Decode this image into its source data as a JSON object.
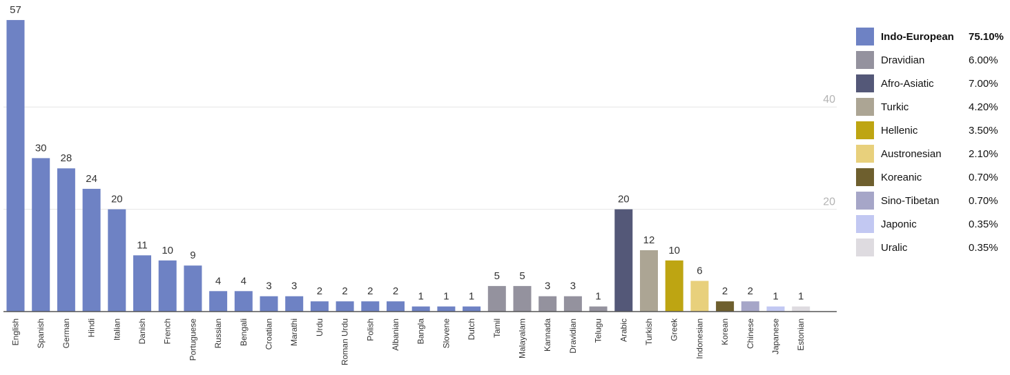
{
  "chart_data": {
    "type": "bar",
    "categories": [
      "English",
      "Spanish",
      "German",
      "Hindi",
      "Italian",
      "Danish",
      "French",
      "Portuguese",
      "Russian",
      "Bengali",
      "Croatian",
      "Marathi",
      "Urdu",
      "Roman Urdu",
      "Polish",
      "Albanian",
      "Bangla",
      "Slovene",
      "Dutch",
      "Tamil",
      "Malayalam",
      "Kannada",
      "Dravidian",
      "Telugu",
      "Arabic",
      "Turkish",
      "Greek",
      "Indonesian",
      "Korean",
      "Chinese",
      "Japanese",
      "Estonian"
    ],
    "values": [
      57,
      30,
      28,
      24,
      20,
      11,
      10,
      9,
      4,
      4,
      3,
      3,
      2,
      2,
      2,
      2,
      1,
      1,
      1,
      5,
      5,
      3,
      3,
      1,
      20,
      12,
      10,
      6,
      2,
      2,
      1,
      1
    ],
    "bar_families": [
      "Indo-European",
      "Indo-European",
      "Indo-European",
      "Indo-European",
      "Indo-European",
      "Indo-European",
      "Indo-European",
      "Indo-European",
      "Indo-European",
      "Indo-European",
      "Indo-European",
      "Indo-European",
      "Indo-European",
      "Indo-European",
      "Indo-European",
      "Indo-European",
      "Indo-European",
      "Indo-European",
      "Indo-European",
      "Dravidian",
      "Dravidian",
      "Dravidian",
      "Dravidian",
      "Dravidian",
      "Afro-Asiatic",
      "Turkic",
      "Hellenic",
      "Austronesian",
      "Koreanic",
      "Sino-Tibetan",
      "Japonic",
      "Uralic"
    ],
    "y_ticks": [
      20,
      40
    ],
    "ylim": [
      0,
      57
    ],
    "grid": true,
    "legend_position": "right",
    "title": "",
    "xlabel": "",
    "ylabel": "",
    "legend": [
      {
        "name": "Indo-European",
        "value": "75.10%",
        "color": "#6e82c4",
        "highlight": true
      },
      {
        "name": "Dravidian",
        "value": "6.00%",
        "color": "#94929e",
        "highlight": false
      },
      {
        "name": "Afro-Asiatic",
        "value": "7.00%",
        "color": "#545878",
        "highlight": false
      },
      {
        "name": "Turkic",
        "value": "4.20%",
        "color": "#aca594",
        "highlight": false
      },
      {
        "name": "Hellenic",
        "value": "3.50%",
        "color": "#bea512",
        "highlight": false
      },
      {
        "name": "Austronesian",
        "value": "2.10%",
        "color": "#e8d07c",
        "highlight": false
      },
      {
        "name": "Koreanic",
        "value": "0.70%",
        "color": "#6e5f2e",
        "highlight": false
      },
      {
        "name": "Sino-Tibetan",
        "value": "0.70%",
        "color": "#a6a6c8",
        "highlight": false
      },
      {
        "name": "Japonic",
        "value": "0.35%",
        "color": "#c2c8f2",
        "highlight": false
      },
      {
        "name": "Uralic",
        "value": "0.35%",
        "color": "#dedbe0",
        "highlight": false
      }
    ]
  }
}
